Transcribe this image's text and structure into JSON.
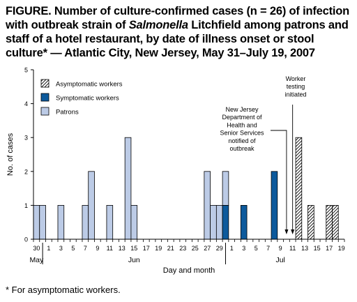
{
  "figure": {
    "title_parts": [
      {
        "text": "FIGURE. Number of culture-confirmed cases (n = 26) of infection with outbreak strain of ",
        "italic": false
      },
      {
        "text": "Salmonella",
        "italic": true
      },
      {
        "text": " Litchfield among patrons and staff of a hotel restaurant, by date of illness onset or stool culture* — Atlantic City, New Jersey, May 31–July 19, 2007",
        "italic": false
      }
    ],
    "footnote": "* For asymptomatic workers."
  },
  "chart_data": {
    "type": "bar",
    "stacked": true,
    "xlabel": "Day and month",
    "ylabel": "No. of cases",
    "ylim": [
      0,
      5
    ],
    "yticks": [
      0,
      1,
      2,
      3,
      4,
      5
    ],
    "dates": [
      "30",
      "31",
      "1",
      "2",
      "3",
      "4",
      "5",
      "6",
      "7",
      "8",
      "9",
      "10",
      "11",
      "12",
      "13",
      "14",
      "15",
      "16",
      "17",
      "18",
      "19",
      "20",
      "21",
      "22",
      "23",
      "24",
      "25",
      "26",
      "27",
      "28",
      "29",
      "30",
      "1",
      "2",
      "3",
      "4",
      "5",
      "6",
      "7",
      "8",
      "9",
      "10",
      "11",
      "12",
      "13",
      "14",
      "15",
      "16",
      "17",
      "18",
      "19"
    ],
    "tick_labels": [
      {
        "index": 0,
        "label": "30"
      },
      {
        "index": 2,
        "label": "1"
      },
      {
        "index": 4,
        "label": "3"
      },
      {
        "index": 6,
        "label": "5"
      },
      {
        "index": 8,
        "label": "7"
      },
      {
        "index": 10,
        "label": "9"
      },
      {
        "index": 12,
        "label": "11"
      },
      {
        "index": 14,
        "label": "13"
      },
      {
        "index": 16,
        "label": "15"
      },
      {
        "index": 18,
        "label": "17"
      },
      {
        "index": 20,
        "label": "19"
      },
      {
        "index": 22,
        "label": "21"
      },
      {
        "index": 24,
        "label": "23"
      },
      {
        "index": 26,
        "label": "25"
      },
      {
        "index": 28,
        "label": "27"
      },
      {
        "index": 30,
        "label": "29"
      },
      {
        "index": 32,
        "label": "1"
      },
      {
        "index": 34,
        "label": "3"
      },
      {
        "index": 36,
        "label": "5"
      },
      {
        "index": 38,
        "label": "7"
      },
      {
        "index": 40,
        "label": "9"
      },
      {
        "index": 42,
        "label": "11"
      },
      {
        "index": 44,
        "label": "13"
      },
      {
        "index": 46,
        "label": "15"
      },
      {
        "index": 48,
        "label": "17"
      },
      {
        "index": 50,
        "label": "19"
      }
    ],
    "months": [
      {
        "label": "May",
        "index": 0
      },
      {
        "label": "Jun",
        "index": 16
      },
      {
        "label": "Jul",
        "index": 40
      }
    ],
    "month_dividers": [
      1.5,
      31.5
    ],
    "series": [
      {
        "name": "Asymptomatic workers",
        "pattern": "hatch",
        "color": "#ffffff",
        "values": [
          0,
          0,
          0,
          0,
          0,
          0,
          0,
          0,
          0,
          0,
          0,
          0,
          0,
          0,
          0,
          0,
          0,
          0,
          0,
          0,
          0,
          0,
          0,
          0,
          0,
          0,
          0,
          0,
          0,
          0,
          0,
          0,
          0,
          0,
          0,
          0,
          0,
          0,
          0,
          0,
          0,
          0,
          0,
          3,
          0,
          1,
          0,
          0,
          1,
          1,
          0
        ]
      },
      {
        "name": "Symptomatic workers",
        "color": "#0d5a9c",
        "values": [
          0,
          0,
          0,
          0,
          0,
          0,
          0,
          0,
          0,
          0,
          0,
          0,
          0,
          0,
          0,
          0,
          0,
          0,
          0,
          0,
          0,
          0,
          0,
          0,
          0,
          0,
          0,
          0,
          0,
          0,
          0,
          1,
          0,
          0,
          1,
          0,
          0,
          0,
          0,
          2,
          0,
          0,
          0,
          0,
          0,
          0,
          0,
          0,
          0,
          0,
          0
        ]
      },
      {
        "name": "Patrons",
        "color": "#bccbe6",
        "values": [
          1,
          1,
          0,
          0,
          1,
          0,
          0,
          0,
          1,
          2,
          0,
          0,
          1,
          0,
          0,
          3,
          1,
          0,
          0,
          0,
          0,
          0,
          0,
          0,
          0,
          0,
          0,
          0,
          2,
          1,
          1,
          1,
          0,
          0,
          0,
          0,
          0,
          0,
          0,
          0,
          0,
          0,
          0,
          0,
          0,
          0,
          0,
          0,
          0,
          0,
          0
        ]
      }
    ],
    "annotations": [
      {
        "text": "New Jersey\nDepartment of\nHealth and\nSenior Services\nnotified of\noutbreak",
        "index": 41
      },
      {
        "text": "Worker\ntesting\ninitiated",
        "index": 42
      }
    ]
  }
}
